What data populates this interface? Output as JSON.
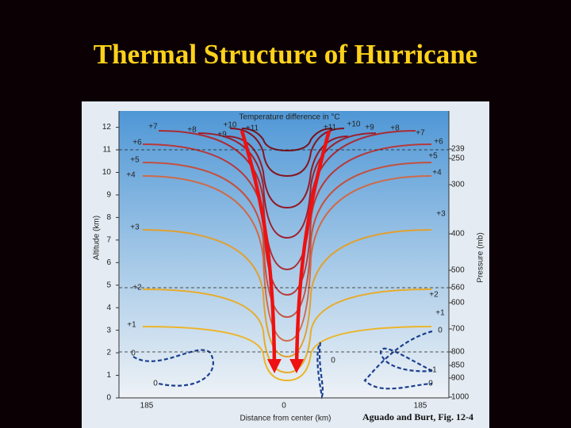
{
  "title": "Thermal Structure of Hurricane",
  "figure": {
    "top_label": "Temperature difference in °C",
    "y_axis_label": "Altitude (km)",
    "y_ticks": [
      0,
      1,
      2,
      3,
      4,
      5,
      6,
      7,
      8,
      9,
      10,
      11,
      12
    ],
    "y2_axis_label": "Pressure (mb)",
    "y2_ticks": [
      239,
      250,
      300,
      400,
      500,
      560,
      600,
      700,
      800,
      850,
      900,
      1000
    ],
    "x_axis_label": "Distance from center (km)",
    "x_ticks": [
      "185",
      "0",
      "185"
    ],
    "contour_labels": [
      "+7",
      "+8",
      "+10",
      "+9",
      "+11",
      "+6",
      "+5",
      "+4",
      "+3",
      "+2",
      "+1",
      "0",
      "0",
      "+11",
      "+10",
      "+9",
      "+8",
      "+7",
      "+6",
      "+5",
      "+4",
      "+3",
      "+2",
      "+1",
      "0",
      "0",
      "−1",
      "0"
    ]
  },
  "caption": "Aguado and Burt, Fig. 12-4"
}
